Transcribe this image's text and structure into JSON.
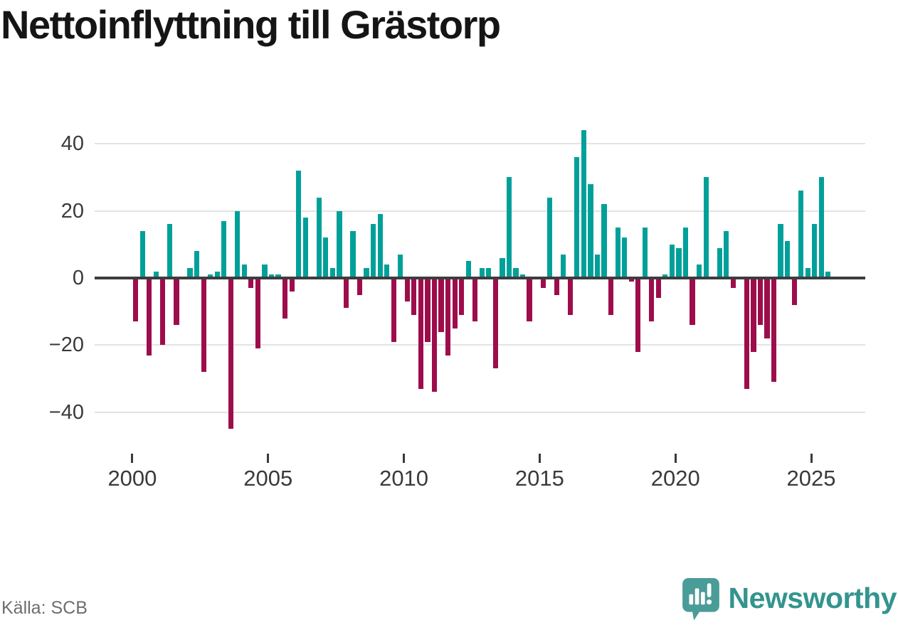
{
  "header": {
    "title": "Nettoinflyttning till Grästorp"
  },
  "chart_data": {
    "type": "bar",
    "title": "Nettoinflyttning till Grästorp",
    "frequency": "quarterly",
    "start_year": 2000,
    "start_quarter": 1,
    "values": [
      -13,
      14,
      -23,
      2,
      -20,
      16,
      -14,
      0,
      3,
      8,
      -28,
      1,
      2,
      17,
      -45,
      20,
      4,
      -3,
      -21,
      4,
      1,
      1,
      -12,
      -4,
      32,
      18,
      0,
      24,
      12,
      3,
      20,
      -9,
      14,
      -5,
      3,
      16,
      19,
      4,
      -19,
      7,
      -7,
      -11,
      -33,
      -19,
      -34,
      -16,
      -23,
      -15,
      -11,
      5,
      -13,
      3,
      3,
      -27,
      6,
      30,
      3,
      1,
      -13,
      0,
      -3,
      24,
      -5,
      7,
      -11,
      36,
      44,
      28,
      7,
      22,
      -11,
      15,
      12,
      -1,
      -22,
      15,
      -13,
      -6,
      1,
      10,
      9,
      15,
      -14,
      4,
      30,
      0,
      9,
      14,
      -3,
      0,
      -33,
      -22,
      -14,
      -18,
      -31,
      16,
      11,
      -8,
      26,
      3,
      16,
      30,
      2
    ],
    "colors": {
      "positive": "#00a09a",
      "negative": "#9e0d4b"
    },
    "grid": true,
    "legend": "none",
    "xaxis": {
      "tick_labels": [
        "2000",
        "2005",
        "2010",
        "2015",
        "2020",
        "2025"
      ]
    },
    "yaxis": {
      "tick_labels": [
        "40",
        "20",
        "0",
        "−20",
        "−40"
      ],
      "tick_values": [
        40,
        20,
        0,
        -20,
        -40
      ]
    },
    "ylim": [
      -47,
      46
    ]
  },
  "footer": {
    "source": "Källa: SCB",
    "brand": "Newsworthy",
    "brand_color": "#33948e",
    "brand_icon_color": "#4a9c98"
  }
}
